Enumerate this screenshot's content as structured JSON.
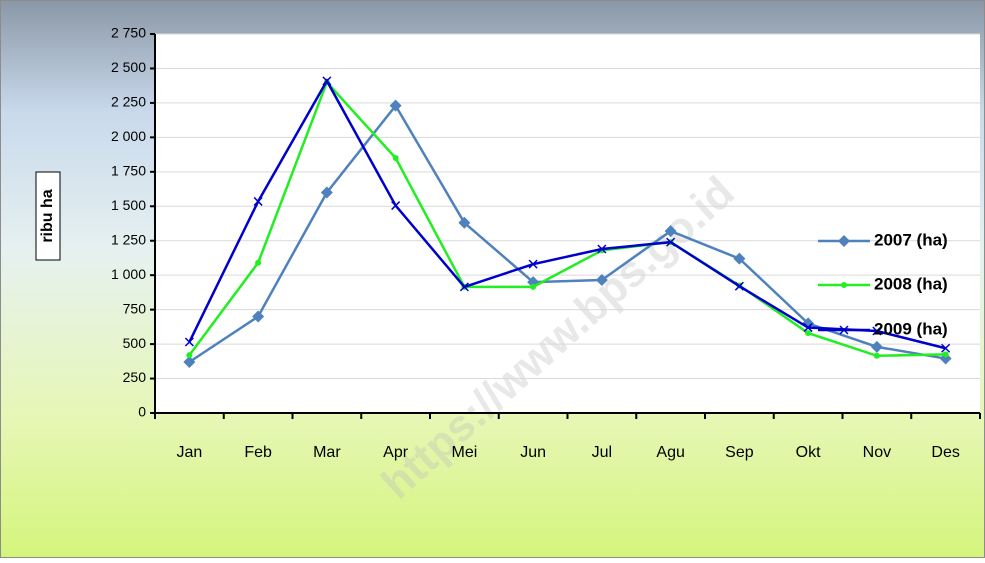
{
  "chart_data": {
    "type": "line",
    "y_axis_label": "ribu ha",
    "watermark": "https://www.bps.go.id",
    "categories": [
      "Jan",
      "Feb",
      "Mar",
      "Apr",
      "Mei",
      "Jun",
      "Jul",
      "Agu",
      "Sep",
      "Okt",
      "Nov",
      "Des"
    ],
    "series": [
      {
        "name": "2007 (ha)",
        "color": "#4f81bd",
        "marker": "diamond",
        "values": [
          370,
          700,
          1600,
          2230,
          1380,
          950,
          965,
          1320,
          1120,
          650,
          480,
          395
        ]
      },
      {
        "name": "2008 (ha)",
        "color": "#22ee22",
        "marker": "circle",
        "values": [
          420,
          1090,
          2400,
          1850,
          915,
          915,
          1180,
          1240,
          925,
          580,
          415,
          425
        ]
      },
      {
        "name": "2009 (ha)",
        "color": "#0000cc",
        "marker": "x",
        "values": [
          515,
          1535,
          2410,
          1505,
          915,
          1080,
          1190,
          1240,
          920,
          620,
          595,
          470
        ]
      }
    ],
    "ylim": [
      0,
      2750
    ],
    "yticks": [
      0,
      250,
      500,
      750,
      {
        "value": 1000,
        "label": "1 000"
      },
      {
        "value": 1250,
        "label": "1 250"
      },
      {
        "value": 1500,
        "label": "1 500"
      },
      {
        "value": 1750,
        "label": "1 750"
      },
      {
        "value": 2000,
        "label": "2 000"
      },
      {
        "value": 2250,
        "label": "2 250"
      },
      {
        "value": 2500,
        "label": "2 500"
      },
      {
        "value": 2750,
        "label": "2 750"
      }
    ],
    "grid": true,
    "legend": "right"
  }
}
